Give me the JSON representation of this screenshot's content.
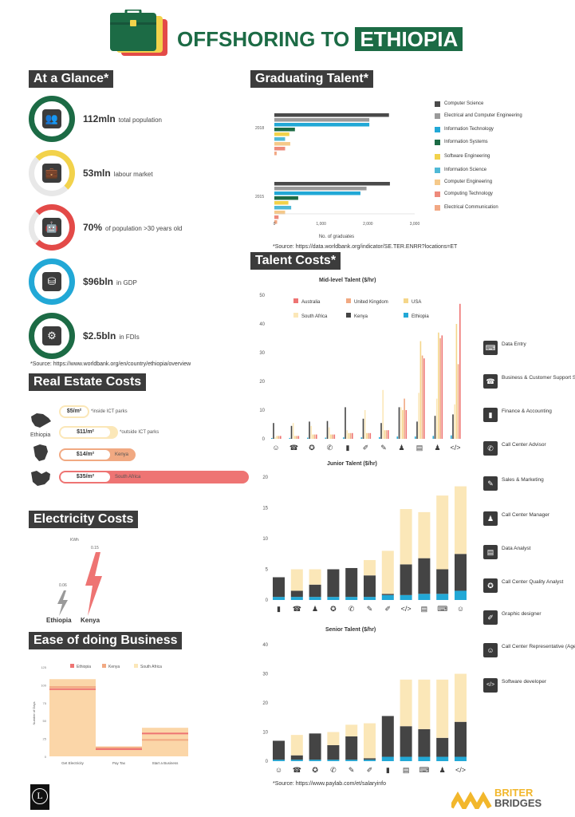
{
  "title": {
    "part1": "OFFSHORING TO",
    "part2": "ETHIOPIA"
  },
  "glance": {
    "heading": "At a Glance*",
    "items": [
      {
        "value": "112mln",
        "label": "total population",
        "color": "#1c6b45",
        "icon": "people-icon"
      },
      {
        "value": "53mln",
        "label": "labour market",
        "color": "#f2d24b",
        "icon": "briefcase-icon"
      },
      {
        "value": "70%",
        "label": "of population >30 years old",
        "color": "#e34a48",
        "icon": "robot-icon"
      },
      {
        "value": "$96bln",
        "label": "in GDP",
        "color": "#22a8d6",
        "icon": "coins-icon"
      },
      {
        "value": "$2.5bln",
        "label": "in FDIs",
        "color": "#1c6b45",
        "icon": "gears-hand-icon"
      }
    ],
    "source": "*Source: https://www.worldbank.org/en/country/ethiopia/overview"
  },
  "realestate": {
    "heading": "Real Estate Costs",
    "country_label": "Ethiopia",
    "rows": [
      {
        "price": "$5/m²",
        "note": "*inside ICT parks",
        "color": "#fbe7b8"
      },
      {
        "price": "$11/m²",
        "note": "*outside ICT parks",
        "color": "#fbe7b8"
      },
      {
        "price": "$14/m²",
        "note": "Kenya",
        "color": "#f1a982"
      },
      {
        "price": "$35/m²",
        "note": "South Africa",
        "color": "#ee7473"
      }
    ]
  },
  "electricity": {
    "heading": "Electricity Costs",
    "unit": "KWh",
    "items": [
      {
        "country": "Ethiopia",
        "value": "0.06"
      },
      {
        "country": "Kenya",
        "value": "0.15"
      }
    ]
  },
  "ease": {
    "heading": "Ease of doing Business",
    "legend": [
      "Ethiopia",
      "Kenya",
      "South Africa"
    ],
    "ylabel": "Number of Days",
    "yticks": [
      "0",
      "25",
      "50",
      "75",
      "100",
      "125"
    ],
    "categories": [
      "Get Electricity",
      "Pay Tax",
      "Start a Business"
    ]
  },
  "graduating": {
    "heading": "Graduating Talent*",
    "xlabel": "No. of graduates",
    "xticks": [
      "0",
      "1,000",
      "2,000",
      "3,000"
    ],
    "years": [
      "2018",
      "2015"
    ],
    "source": "*Source: https://data.worldbank.org/indicator/SE.TER.ENRR?locations=ET"
  },
  "talent": {
    "heading": "Talent Costs*",
    "mid_title": "Mid-level Talent ($/hr)",
    "junior_title": "Junior Talent ($/hr)",
    "senior_title": "Senior Talent ($/hr)",
    "mid_legend": [
      "Australia",
      "United Kingdom",
      "USA",
      "South Africa",
      "Kenya",
      "Ethiopia"
    ],
    "mid_yticks": [
      "0",
      "10",
      "20",
      "30",
      "40",
      "50"
    ],
    "junior_yticks": [
      "0",
      "5",
      "10",
      "15",
      "20"
    ],
    "senior_yticks": [
      "0",
      "10",
      "20",
      "30",
      "40"
    ],
    "source": "*Source: https://www.paylab.com/et/salaryinfo"
  },
  "roles": [
    {
      "label": "Data Entry",
      "icon": "data-entry-icon"
    },
    {
      "label": "Business & Customer Support Specialist",
      "icon": "support-icon"
    },
    {
      "label": "Finance & Accounting",
      "icon": "finance-icon"
    },
    {
      "label": "Call Center Advisor",
      "icon": "advisor-icon"
    },
    {
      "label": "Sales & Marketing",
      "icon": "sales-icon"
    },
    {
      "label": "Call Center Manager",
      "icon": "manager-icon"
    },
    {
      "label": "Data Analyst",
      "icon": "analyst-icon"
    },
    {
      "label": "Call Center Quality Analyst",
      "icon": "quality-icon"
    },
    {
      "label": "Graphic designer",
      "icon": "design-icon"
    },
    {
      "label": "Call Center Representative (Agent)",
      "icon": "agent-icon"
    },
    {
      "label": "Software developer",
      "icon": "code-icon"
    }
  ],
  "brand": {
    "line1": "BRITER",
    "line2": "BRIDGES",
    "logo_letter": "L"
  },
  "colors": {
    "green": "#1c6b45",
    "dark": "#3c3c3c",
    "ethiopia": "#22a8d6",
    "kenya": "#444444",
    "south_africa": "#fbe7b8",
    "usa": "#f5d68a",
    "uk": "#f1a982",
    "australia": "#ee7473",
    "yellow": "#f2d24b",
    "red": "#e34a48",
    "orange": "#f0a03b"
  },
  "chart_data": [
    {
      "type": "bar",
      "title": "Graduating Talent*",
      "xlabel": "No. of graduates",
      "xlim": [
        0,
        3000
      ],
      "categories": [
        "2018",
        "2015"
      ],
      "series": [
        {
          "name": "Computer Science",
          "values": [
            2450,
            2470
          ]
        },
        {
          "name": "Electrical and Computer Engineering",
          "values": [
            2030,
            1970
          ]
        },
        {
          "name": "Information Technology",
          "values": [
            2030,
            1840
          ]
        },
        {
          "name": "Information Systems",
          "values": [
            440,
            510
          ]
        },
        {
          "name": "Software Engineering",
          "values": [
            320,
            300
          ]
        },
        {
          "name": "Information Science",
          "values": [
            230,
            360
          ]
        },
        {
          "name": "Computer Engineering",
          "values": [
            340,
            230
          ]
        },
        {
          "name": "Computing Technology",
          "values": [
            230,
            90
          ]
        },
        {
          "name": "Electrical Communication",
          "values": [
            50,
            60
          ]
        }
      ]
    },
    {
      "type": "bar",
      "title": "Mid-level Talent ($/hr)",
      "ylim": [
        0,
        50
      ],
      "categories": [
        "Call Center Representative (Agent)",
        "Business & Customer Support Specialist",
        "Call Center Quality Analyst",
        "Call Center Advisor",
        "Finance & Accounting",
        "Graphic designer",
        "Sales & Marketing",
        "Call Center Manager",
        "Data Analyst",
        "Call Center Manager 2",
        "Software developer"
      ],
      "series": [
        {
          "name": "Ethiopia",
          "values": [
            0.3,
            0.3,
            0.4,
            0.4,
            0.5,
            0.5,
            0.6,
            0.8,
            0.8,
            1.0,
            1.2
          ]
        },
        {
          "name": "Kenya",
          "values": [
            5.5,
            4.5,
            6,
            6.2,
            11,
            7,
            5.5,
            11,
            6,
            8,
            8.5
          ]
        },
        {
          "name": "South Africa",
          "values": [
            0.5,
            5.5,
            4.5,
            4,
            3,
            10,
            17,
            11,
            16,
            14,
            12
          ]
        },
        {
          "name": "USA",
          "values": [
            1,
            1,
            1.5,
            1.5,
            2,
            2,
            3,
            10,
            34,
            37,
            40
          ]
        },
        {
          "name": "United Kingdom",
          "values": [
            1,
            1,
            1.5,
            1.5,
            2,
            2,
            3,
            14,
            29,
            35,
            26
          ]
        },
        {
          "name": "Australia",
          "values": [
            1,
            1,
            1.5,
            1.5,
            2,
            2,
            3,
            10,
            28,
            36,
            47
          ]
        }
      ]
    },
    {
      "type": "bar",
      "title": "Junior Talent ($/hr)",
      "ylim": [
        0,
        20
      ],
      "categories": [
        "Finance & Accounting",
        "Business & Customer Support Specialist",
        "Call Center Manager",
        "Call Center Quality Analyst",
        "Call Center Advisor",
        "Sales & Marketing",
        "Graphic designer",
        "Software developer",
        "Data Analyst",
        "Data Entry",
        "Call Center Representative (Agent)"
      ],
      "series": [
        {
          "name": "Ethiopia",
          "values": [
            0.5,
            0.5,
            0.5,
            0.5,
            0.5,
            0.5,
            0.8,
            0.8,
            1,
            1,
            1.5
          ]
        },
        {
          "name": "Kenya",
          "values": [
            3.2,
            1,
            2,
            4.5,
            4.7,
            3.5,
            0.2,
            5,
            5.8,
            4,
            6
          ]
        },
        {
          "name": "South Africa",
          "values": [
            0,
            3.5,
            2.5,
            0,
            0,
            2.5,
            7,
            9,
            7.5,
            12,
            11
          ]
        }
      ]
    },
    {
      "type": "bar",
      "title": "Senior Talent ($/hr)",
      "ylim": [
        0,
        40
      ],
      "categories": [
        "Call Center Representative (Agent)",
        "Business & Customer Support Specialist",
        "Call Center Quality Analyst",
        "Call Center Advisor",
        "Sales & Marketing",
        "Graphic designer",
        "Finance & Accounting",
        "Data Analyst",
        "Data Entry",
        "Call Center Manager",
        "Software developer"
      ],
      "series": [
        {
          "name": "Ethiopia",
          "values": [
            0.5,
            0.5,
            0.5,
            0.5,
            0.5,
            0.5,
            1.5,
            1.5,
            1.5,
            1.5,
            1.5
          ]
        },
        {
          "name": "Kenya",
          "values": [
            6.5,
            1.5,
            9,
            5,
            8,
            0.5,
            14,
            10.5,
            9.5,
            6.5,
            12
          ]
        },
        {
          "name": "South Africa",
          "values": [
            0,
            7,
            0,
            4.5,
            4,
            12,
            0,
            16,
            17,
            20,
            16.5
          ]
        }
      ]
    },
    {
      "type": "bar",
      "title": "Ease of doing Business",
      "ylabel": "Number of Days",
      "ylim": [
        0,
        125
      ],
      "categories": [
        "Get Electricity",
        "Pay Tax",
        "Start a Business"
      ],
      "series": [
        {
          "name": "Ethiopia",
          "values": [
            94,
            10,
            32
          ]
        },
        {
          "name": "Kenya",
          "values": [
            97,
            12,
            23
          ]
        },
        {
          "name": "South Africa",
          "values": [
            108,
            14,
            40
          ]
        }
      ]
    }
  ]
}
